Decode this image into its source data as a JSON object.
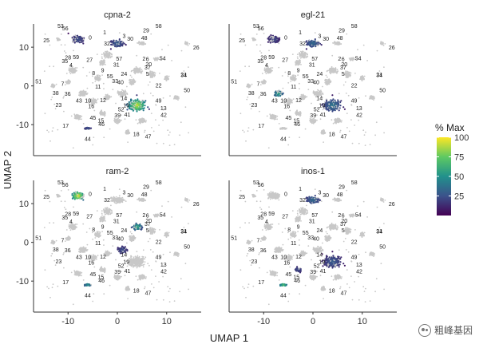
{
  "chart_data": {
    "type": "scatter",
    "title": "",
    "xlabel": "UMAP 1",
    "ylabel": "UMAP 2",
    "xlim": [
      -17,
      17
    ],
    "ylim": [
      -18,
      16
    ],
    "x_ticks": [
      -10,
      0,
      10
    ],
    "y_ticks": [
      10,
      0,
      -10
    ],
    "x_tick_labels": [
      "-10",
      "0",
      "10"
    ],
    "y_tick_labels": [
      "10",
      "0",
      "-10"
    ],
    "panels": [
      {
        "title": "cpna-2"
      },
      {
        "title": "egl-21"
      },
      {
        "title": "ram-2"
      },
      {
        "title": "inos-1"
      }
    ],
    "color_scale": {
      "title": "% Max",
      "range": [
        0,
        100
      ],
      "ticks": [
        "100",
        "75",
        "50",
        "25"
      ],
      "colors": [
        "#440154",
        "#3b528b",
        "#21918c",
        "#5ec962",
        "#fde725"
      ],
      "background_color": "#c8c8c8"
    },
    "cluster_labels": [
      "0",
      "1",
      "2",
      "3",
      "4",
      "5",
      "6",
      "7",
      "8",
      "9",
      "10",
      "11",
      "12",
      "13",
      "14",
      "15",
      "16",
      "17",
      "18",
      "19",
      "20",
      "21",
      "22",
      "23",
      "24",
      "25",
      "26",
      "27",
      "28",
      "29",
      "30",
      "31",
      "32",
      "33",
      "34",
      "35",
      "36",
      "37",
      "38",
      "39",
      "40",
      "41",
      "42",
      "43",
      "44",
      "45",
      "46",
      "47",
      "48",
      "49",
      "50",
      "51",
      "52",
      "53",
      "54",
      "55",
      "56",
      "57",
      "58",
      "59"
    ],
    "legend_position": "right"
  },
  "watermark": {
    "text": "粗峰基因"
  }
}
